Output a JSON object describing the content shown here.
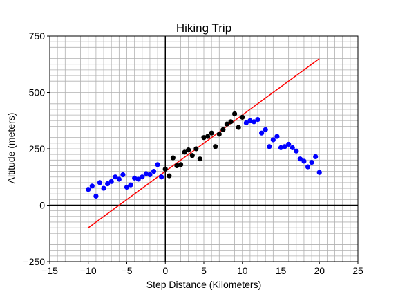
{
  "chart_data": {
    "type": "scatter",
    "title": "Hiking  Trip",
    "xlabel": "Step Distance (Kilometers)",
    "ylabel": "Altitude (meters)",
    "xlim": [
      -15,
      25
    ],
    "ylim": [
      -250,
      750
    ],
    "x_ticks": [
      -15,
      -10,
      -5,
      0,
      5,
      10,
      15,
      20,
      25
    ],
    "y_ticks": [
      -250,
      0,
      250,
      500,
      750
    ],
    "x_tick_labels": [
      "−15",
      "−10",
      "−5",
      "0",
      "5",
      "10",
      "15",
      "20",
      "25"
    ],
    "y_tick_labels": [
      "−250",
      "0",
      "250",
      "500",
      "750"
    ],
    "x_minor_step": 1,
    "y_minor_step": 25,
    "grid": true,
    "colors": {
      "blue_points": "#0000ff",
      "black_points": "#000000",
      "fit_line": "#ff0000",
      "grid": "#b0b0b0",
      "zero_axes": "#000000"
    },
    "series": [
      {
        "color": "blue",
        "points": [
          [
            -10,
            70
          ],
          [
            -9.5,
            85
          ],
          [
            -9,
            40
          ],
          [
            -8.5,
            100
          ],
          [
            -8,
            75
          ],
          [
            -7.5,
            95
          ],
          [
            -7,
            105
          ],
          [
            -6.5,
            125
          ],
          [
            -6,
            115
          ],
          [
            -5.5,
            135
          ],
          [
            -5,
            80
          ],
          [
            -4.5,
            90
          ],
          [
            -4,
            120
          ],
          [
            -3.5,
            115
          ],
          [
            -3,
            125
          ],
          [
            -2.5,
            140
          ],
          [
            -2,
            135
          ],
          [
            -1.5,
            150
          ],
          [
            -1,
            180
          ],
          [
            -0.5,
            125
          ],
          [
            10.5,
            365
          ],
          [
            11,
            375
          ],
          [
            11.5,
            370
          ],
          [
            12,
            380
          ],
          [
            12.5,
            320
          ],
          [
            13,
            335
          ],
          [
            13.5,
            260
          ],
          [
            14,
            290
          ],
          [
            14.5,
            305
          ],
          [
            15,
            255
          ],
          [
            15.5,
            260
          ],
          [
            16,
            270
          ],
          [
            16.5,
            255
          ],
          [
            17,
            240
          ],
          [
            17.5,
            205
          ],
          [
            18,
            195
          ],
          [
            18.5,
            170
          ],
          [
            19,
            190
          ],
          [
            19.5,
            215
          ],
          [
            20,
            145
          ]
        ]
      },
      {
        "color": "black",
        "points": [
          [
            0,
            160
          ],
          [
            0.5,
            130
          ],
          [
            1,
            210
          ],
          [
            1.5,
            175
          ],
          [
            2,
            180
          ],
          [
            2.5,
            235
          ],
          [
            3,
            245
          ],
          [
            3.5,
            220
          ],
          [
            4,
            250
          ],
          [
            4.5,
            205
          ],
          [
            5,
            300
          ],
          [
            5.5,
            305
          ],
          [
            6,
            320
          ],
          [
            6.5,
            260
          ],
          [
            7,
            315
          ],
          [
            7.5,
            335
          ],
          [
            8,
            360
          ],
          [
            8.5,
            370
          ],
          [
            9,
            405
          ],
          [
            9.5,
            345
          ],
          [
            10,
            390
          ]
        ]
      },
      {
        "type": "line",
        "color": "red",
        "points": [
          [
            -10,
            -100
          ],
          [
            20,
            650
          ]
        ]
      }
    ]
  }
}
